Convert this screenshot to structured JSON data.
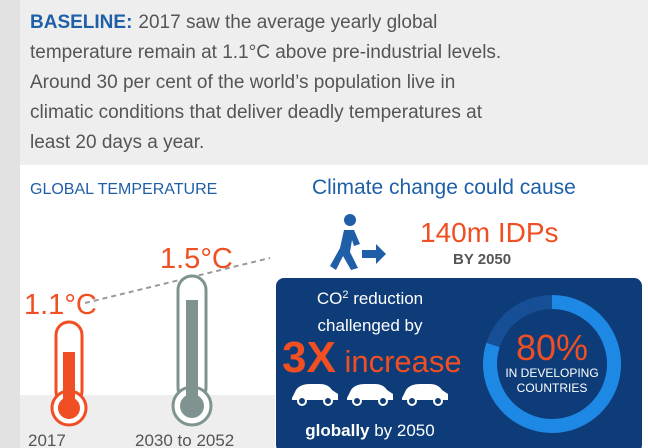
{
  "baseline": {
    "lead": "BASELINE:",
    "lines": [
      "2017 saw the average yearly global",
      "temperature remain at 1.1°C above pre-industrial levels.",
      "Around 30 per cent of the world’s population live in",
      "climatic conditions that deliver deadly temperatures at",
      "least 20 days a year."
    ]
  },
  "temperature": {
    "title": "GLOBAL TEMPERATURE",
    "now_value": "1.1°C",
    "future_value": "1.5°C",
    "now_label": "2017",
    "future_label": "2030 to 2052"
  },
  "displacement": {
    "title": "Climate change could cause",
    "value": "140m IDPs",
    "when": "BY 2050"
  },
  "co2": {
    "prefix": "CO",
    "sup": "2",
    "rest": " reduction",
    "line2": "challenged by",
    "factor": "3X",
    "factor_word": " increase",
    "scope_bold": "globally",
    "scope_rest": " by 2050",
    "share": "80%",
    "share_line1": "IN DEVELOPING",
    "share_line2": "COUNTRIES"
  }
}
